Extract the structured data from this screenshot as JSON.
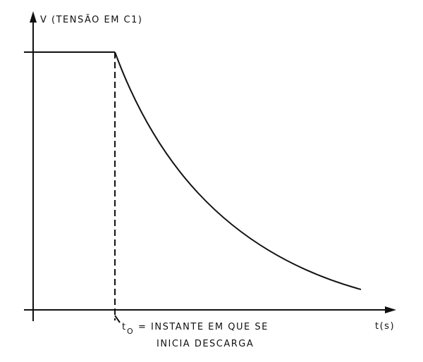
{
  "axes": {
    "y_label": "V (TENSÃO EM C1)",
    "x_label": "t(s)"
  },
  "annotation": {
    "symbol": "t",
    "subscript": "O",
    "line1": "= INSTANTE EM QUE SE",
    "line2": "INICIA DESCARGA"
  }
}
